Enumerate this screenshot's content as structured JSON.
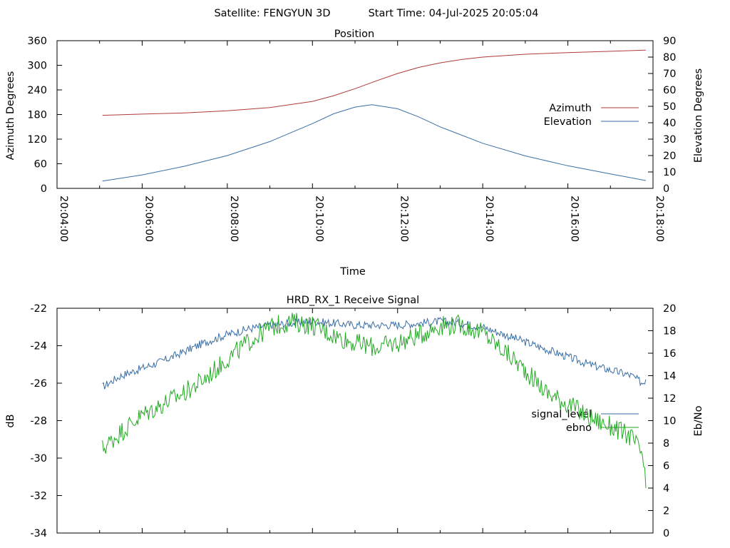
{
  "header": {
    "satellite_label": "Satellite: FENGYUN 3D",
    "start_time_label": "Start Time: 04-Jul-2025 20:05:04"
  },
  "chart_data": [
    {
      "type": "line",
      "title": "Position",
      "xlabel": "Time",
      "ylabel": "Azimuth Degrees",
      "y2label": "Elevation Degrees",
      "xlim": [
        "20:04:00",
        "20:18:00"
      ],
      "x_ticks": [
        "20:04:00",
        "20:06:00",
        "20:08:00",
        "20:10:00",
        "20:12:00",
        "20:14:00",
        "20:16:00",
        "20:18:00"
      ],
      "ylim": [
        0,
        360
      ],
      "y_ticks": [
        0,
        60,
        120,
        180,
        240,
        300,
        360
      ],
      "y2lim": [
        0,
        90
      ],
      "y2_ticks": [
        0,
        10,
        20,
        30,
        40,
        50,
        60,
        70,
        80,
        90
      ],
      "grid": false,
      "legend_position": "right",
      "series": [
        {
          "name": "Azimuth",
          "axis": "y",
          "color": "#b03a3a",
          "x": [
            "20:05:04",
            "20:06:00",
            "20:07:00",
            "20:08:00",
            "20:09:00",
            "20:10:00",
            "20:10:30",
            "20:11:00",
            "20:11:30",
            "20:12:00",
            "20:12:30",
            "20:13:00",
            "20:13:30",
            "20:14:00",
            "20:15:00",
            "20:16:00",
            "20:17:00",
            "20:17:50"
          ],
          "values": [
            178,
            181,
            184,
            189,
            197,
            212,
            226,
            243,
            262,
            280,
            295,
            306,
            314,
            320,
            327,
            331,
            334,
            337
          ]
        },
        {
          "name": "Elevation",
          "axis": "y2",
          "color": "#3a6ea5",
          "x": [
            "20:05:04",
            "20:06:00",
            "20:07:00",
            "20:08:00",
            "20:09:00",
            "20:10:00",
            "20:10:30",
            "20:11:00",
            "20:11:24",
            "20:12:00",
            "20:12:30",
            "20:13:00",
            "20:14:00",
            "20:15:00",
            "20:16:00",
            "20:17:00",
            "20:17:50"
          ],
          "values": [
            4.5,
            8.2,
            13.5,
            20.0,
            28.5,
            39.5,
            45.5,
            49.5,
            51.0,
            48.5,
            43.5,
            37.5,
            27.5,
            19.8,
            13.8,
            8.8,
            4.8
          ]
        }
      ]
    },
    {
      "type": "line",
      "title": "HRD_RX_1 Receive Signal",
      "ylabel": "dB",
      "y2label": "Eb/No",
      "xlim": [
        "20:04:00",
        "20:18:00"
      ],
      "ylim": [
        -34,
        -22
      ],
      "y_ticks": [
        -22,
        -24,
        -26,
        -28,
        -30,
        -32,
        -34
      ],
      "y2lim": [
        0,
        20
      ],
      "y2_ticks": [
        0,
        2,
        4,
        6,
        8,
        10,
        12,
        14,
        16,
        18,
        20
      ],
      "grid": false,
      "legend_position": "right",
      "series": [
        {
          "name": "signal_level",
          "axis": "y",
          "color": "#3a6ea5",
          "x": [
            "20:05:04",
            "20:05:30",
            "20:06:00",
            "20:06:30",
            "20:07:00",
            "20:07:30",
            "20:08:00",
            "20:08:30",
            "20:09:00",
            "20:09:30",
            "20:10:00",
            "20:10:30",
            "20:11:00",
            "20:11:30",
            "20:12:00",
            "20:12:30",
            "20:13:00",
            "20:13:30",
            "20:14:00",
            "20:14:30",
            "20:15:00",
            "20:15:30",
            "20:16:00",
            "20:16:30",
            "20:17:00",
            "20:17:30",
            "20:17:45",
            "20:17:50"
          ],
          "values": [
            -26.2,
            -25.6,
            -25.2,
            -24.8,
            -24.3,
            -23.8,
            -23.4,
            -23.1,
            -22.9,
            -22.8,
            -22.7,
            -22.8,
            -22.9,
            -22.9,
            -22.9,
            -22.8,
            -22.7,
            -22.8,
            -23.0,
            -23.4,
            -23.8,
            -24.2,
            -24.6,
            -25.0,
            -25.3,
            -25.6,
            -26.0,
            -25.8
          ]
        },
        {
          "name": "ebno",
          "axis": "y2",
          "color": "#22aa22",
          "x": [
            "20:05:04",
            "20:05:30",
            "20:06:00",
            "20:06:30",
            "20:07:00",
            "20:07:30",
            "20:08:00",
            "20:08:30",
            "20:09:00",
            "20:09:30",
            "20:10:00",
            "20:10:30",
            "20:11:00",
            "20:11:30",
            "20:12:00",
            "20:12:30",
            "20:13:00",
            "20:13:30",
            "20:14:00",
            "20:14:30",
            "20:15:00",
            "20:15:30",
            "20:16:00",
            "20:16:30",
            "20:17:00",
            "20:17:30",
            "20:17:45",
            "20:17:50"
          ],
          "values": [
            7.5,
            9.0,
            10.5,
            11.5,
            12.5,
            13.8,
            15.5,
            17.0,
            18.3,
            18.8,
            18.5,
            17.6,
            16.9,
            16.5,
            16.9,
            17.6,
            18.5,
            18.5,
            17.8,
            16.2,
            14.5,
            12.5,
            11.5,
            10.3,
            9.5,
            8.5,
            7.0,
            4.0
          ]
        }
      ]
    }
  ]
}
